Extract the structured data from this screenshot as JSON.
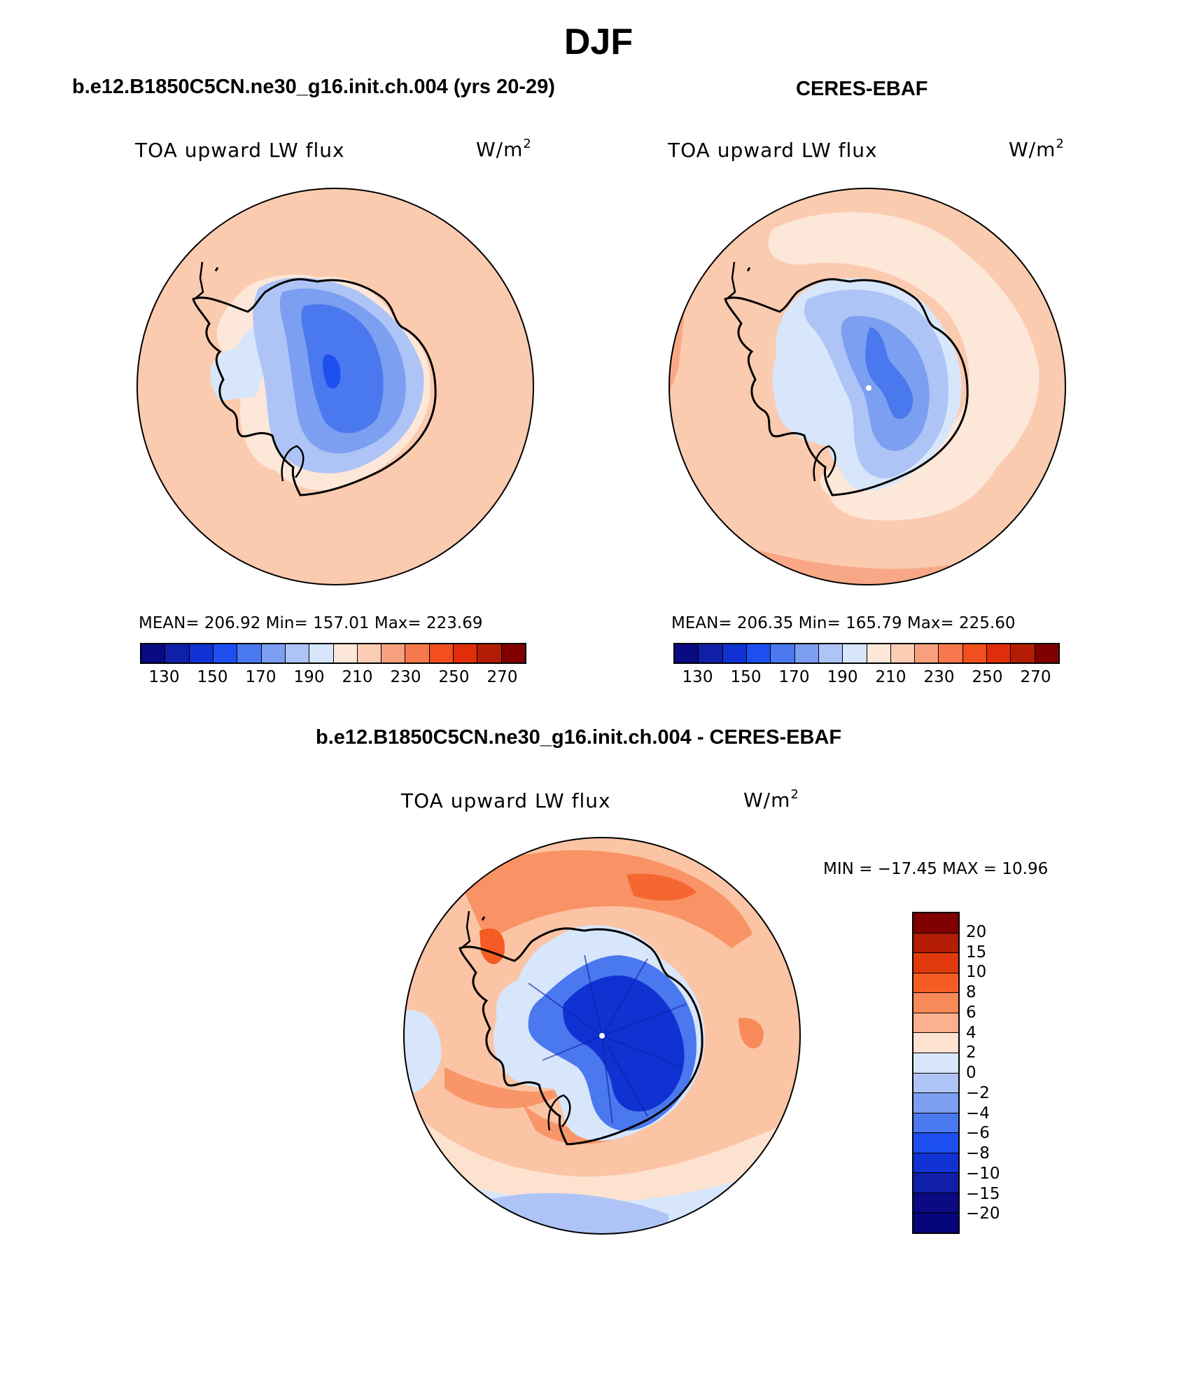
{
  "title": "DJF",
  "panels": [
    {
      "heading": "b.e12.B1850C5CN.ne30_g16.init.ch.004 (yrs 20-29)",
      "variable": "TOA upward LW flux",
      "units_base": "W/m",
      "units_exp": "2",
      "stats": "MEAN= 206.92   Min= 157.01   Max= 223.69"
    },
    {
      "heading": "CERES-EBAF",
      "variable": "TOA upward LW flux",
      "units_base": "W/m",
      "units_exp": "2",
      "stats": "MEAN= 206.35   Min= 165.79   Max= 225.60"
    },
    {
      "heading": "b.e12.B1850C5CN.ne30_g16.init.ch.004 - CERES-EBAF",
      "variable": "TOA upward LW flux",
      "units_base": "W/m",
      "units_exp": "2",
      "stats": "MIN = −17.45 MAX =   10.96"
    }
  ],
  "colorbar_abs": {
    "colors": [
      "#0a0a82",
      "#0f1fa8",
      "#1032d2",
      "#1d4ff0",
      "#4a78ee",
      "#7c9ff2",
      "#aec4f6",
      "#d7e6fa",
      "#fde7d9",
      "#fbccb4",
      "#f8a07e",
      "#f6784c",
      "#f34e1e",
      "#e02d0a",
      "#b31d05",
      "#800000"
    ],
    "tick_labels": [
      "130",
      "150",
      "170",
      "190",
      "210",
      "230",
      "250",
      "270"
    ]
  },
  "colorbar_diff": {
    "colors": [
      "#800000",
      "#b31d05",
      "#e03a0c",
      "#f45c24",
      "#f88a5a",
      "#fbb08e",
      "#fde2cf",
      "#d7e6fa",
      "#aec4f6",
      "#7c9ff2",
      "#4a78ee",
      "#1d4ff0",
      "#1032d2",
      "#0f1fa8",
      "#0a0a82",
      "#05057a"
    ],
    "tick_labels": [
      "20",
      "15",
      "10",
      "8",
      "6",
      "4",
      "2",
      "0",
      "−2",
      "−4",
      "−6",
      "−8",
      "−10",
      "−15",
      "−20"
    ]
  },
  "map_colors": {
    "ocean_model": "#fbcbb0",
    "ocean_obs": "#fbcbb0",
    "ocean_obs_band": "#fde7d9",
    "ocean_obs_edge": "#f8a886",
    "ice_1": "#d7e6fa",
    "ice_2": "#aec4f6",
    "ice_3": "#7c9ff2",
    "ice_4": "#4a78ee",
    "ice_5": "#1d4ff0",
    "diff_ocean": "#fbc4a4",
    "diff_warm": "#f88a5a",
    "diff_cool": "#d7e6fa",
    "diff_ice": "#1032d2",
    "diff_ice_light": "#4a78ee"
  }
}
